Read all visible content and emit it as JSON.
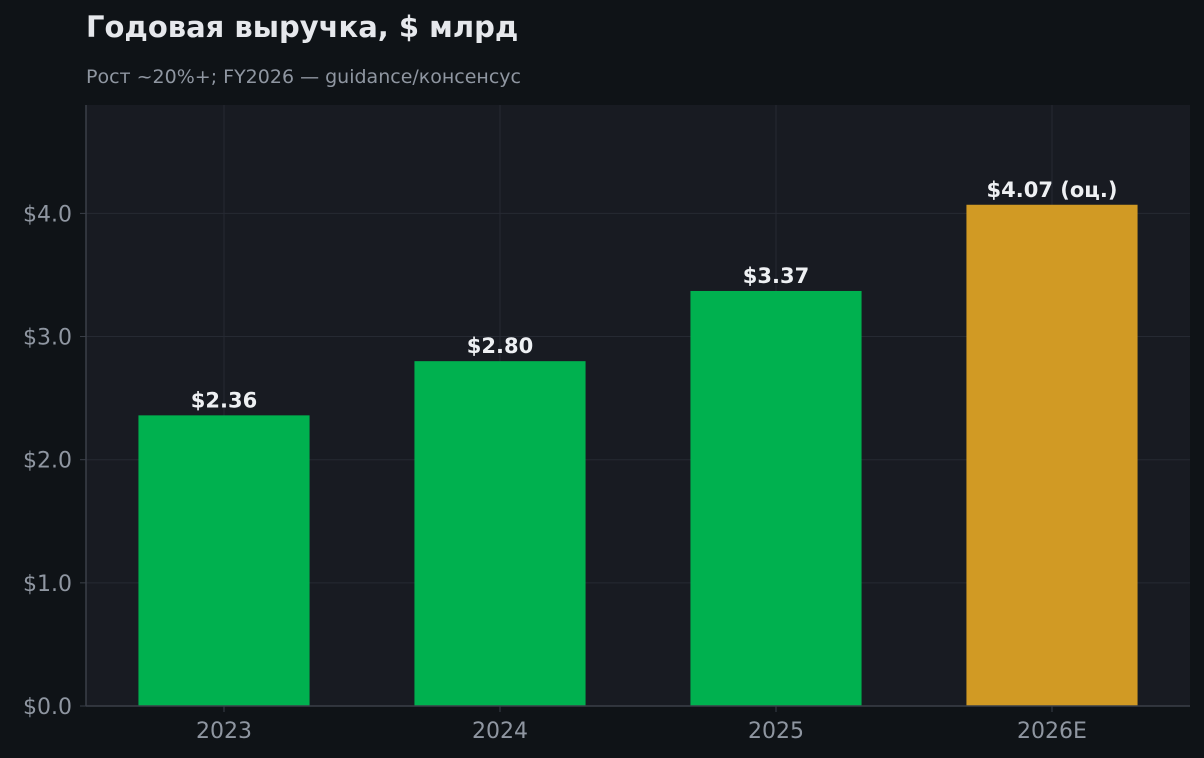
{
  "title": "Годовая выручка, $ млрд",
  "subtitle": "Рост ~20%+; FY2026 — guidance/консенсус",
  "colors": {
    "page_bg": "#0f1317",
    "plot_bg": "#181b22",
    "grid": "#262a33",
    "axis": "#3a3f48",
    "actual": "#00b14f",
    "estimate": "#d19a24",
    "label": "#eef0f3",
    "tick": "#8f96a1"
  },
  "chart_data": {
    "type": "bar",
    "categories": [
      "2023",
      "2024",
      "2025",
      "2026E"
    ],
    "values": [
      2.36,
      2.8,
      3.37,
      4.07
    ],
    "data_labels": [
      "$2.36",
      "$2.80",
      "$3.37",
      "$4.07 (оц.)"
    ],
    "estimate_flags": [
      false,
      false,
      false,
      true
    ],
    "ylim": [
      0,
      4.88
    ],
    "yticks": [
      0,
      1,
      2,
      3,
      4
    ],
    "ytick_labels": [
      "$0.0",
      "$1.0",
      "$2.0",
      "$3.0",
      "$4.0"
    ],
    "xlabel": "",
    "ylabel": "",
    "grid": true,
    "legend": false
  }
}
